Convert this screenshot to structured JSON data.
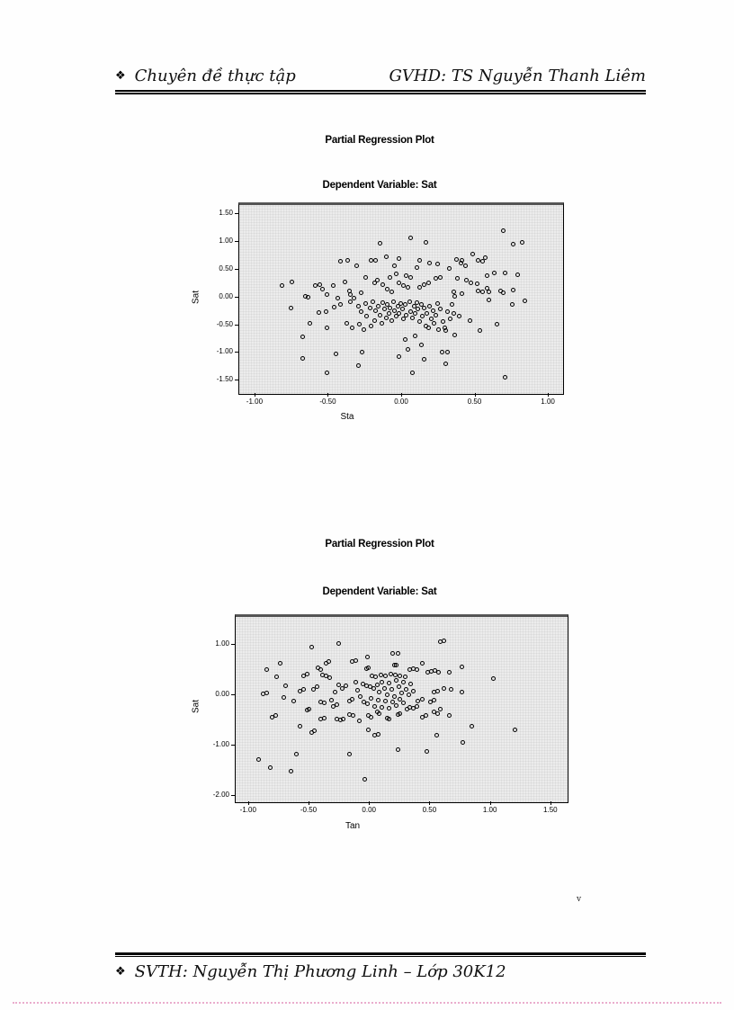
{
  "page": {
    "header": {
      "bullet": "❖",
      "left": "Chuyên đề thực tập",
      "right": "GVHD: TS Nguyễn Thanh Liêm"
    },
    "footer": {
      "bullet": "❖",
      "text": "SVTH: Nguyễn Thị Phương Linh – Lớp 30K12"
    },
    "stray_mark": "v"
  },
  "chart_data": [
    {
      "type": "scatter",
      "title": "Partial Regression Plot",
      "subtitle": "Dependent Variable: Sat",
      "xlabel": "Sta",
      "ylabel": "Sat",
      "xlim": [
        -1.11,
        1.11
      ],
      "ylim": [
        -1.74,
        1.7
      ],
      "grid": false,
      "legend": "none",
      "plot_bg": "#ececec",
      "marker_outline": "#000000",
      "xticks": {
        "values": [
          -1.0,
          -0.5,
          0.0,
          0.5,
          1.0
        ],
        "labels": [
          "-1.00",
          "-0.50",
          "0.00",
          "0.50",
          "1.00"
        ]
      },
      "yticks": {
        "values": [
          1.5,
          1.0,
          0.5,
          0.0,
          -0.5,
          -1.0,
          -1.5
        ],
        "labels": [
          "1.50",
          "1.00",
          "0.50",
          "0.00",
          "-0.50",
          "-1.00",
          "-1.50"
        ]
      },
      "points": [
        [
          -0.82,
          0.24
        ],
        [
          -0.75,
          0.31
        ],
        [
          -0.76,
          -0.15
        ],
        [
          -0.66,
          0.06
        ],
        [
          -0.64,
          0.03
        ],
        [
          -0.68,
          -0.67
        ],
        [
          -0.63,
          -0.44
        ],
        [
          -0.68,
          -1.07
        ],
        [
          -0.59,
          0.24
        ],
        [
          -0.56,
          0.26
        ],
        [
          -0.54,
          0.18
        ],
        [
          -0.51,
          0.08
        ],
        [
          -0.57,
          -0.24
        ],
        [
          -0.52,
          -0.23
        ],
        [
          -0.51,
          -0.52
        ],
        [
          -0.51,
          -1.33
        ],
        [
          -0.47,
          0.24
        ],
        [
          -0.45,
          -0.98
        ],
        [
          -0.44,
          0.02
        ],
        [
          -0.46,
          -0.14
        ],
        [
          -0.42,
          -0.1
        ],
        [
          -0.42,
          0.69
        ],
        [
          -0.39,
          0.32
        ],
        [
          -0.37,
          0.71
        ],
        [
          -0.36,
          0.15
        ],
        [
          -0.38,
          -0.44
        ],
        [
          -0.34,
          -0.52
        ],
        [
          -0.35,
          0.08
        ],
        [
          -0.35,
          -0.05
        ],
        [
          -0.33,
          0.02
        ],
        [
          -0.31,
          0.61
        ],
        [
          -0.3,
          -0.12
        ],
        [
          -0.3,
          -1.2
        ],
        [
          -0.29,
          -0.45
        ],
        [
          -0.28,
          0.11
        ],
        [
          -0.28,
          -0.22
        ],
        [
          -0.27,
          -0.95
        ],
        [
          -0.26,
          -0.55
        ],
        [
          -0.25,
          0.4
        ],
        [
          -0.25,
          -0.08
        ],
        [
          -0.24,
          -0.3
        ],
        [
          -0.22,
          -0.16
        ],
        [
          -0.21,
          0.7
        ],
        [
          -0.21,
          -0.48
        ],
        [
          -0.2,
          -0.05
        ],
        [
          -0.19,
          0.3
        ],
        [
          -0.19,
          -0.38
        ],
        [
          -0.18,
          0.71
        ],
        [
          -0.18,
          -0.2
        ],
        [
          -0.17,
          0.35
        ],
        [
          -0.16,
          -0.12
        ],
        [
          -0.15,
          1.01
        ],
        [
          -0.15,
          -0.28
        ],
        [
          -0.14,
          -0.44
        ],
        [
          -0.13,
          0.26
        ],
        [
          -0.13,
          -0.06
        ],
        [
          -0.12,
          -0.18
        ],
        [
          -0.11,
          0.77
        ],
        [
          -0.11,
          -0.33
        ],
        [
          -0.1,
          0.18
        ],
        [
          -0.1,
          -0.1
        ],
        [
          -0.09,
          -0.25
        ],
        [
          -0.08,
          0.39
        ],
        [
          -0.08,
          -0.15
        ],
        [
          -0.07,
          0.13
        ],
        [
          -0.07,
          -0.38
        ],
        [
          -0.06,
          -0.05
        ],
        [
          -0.05,
          0.61
        ],
        [
          -0.05,
          -0.2
        ],
        [
          -0.04,
          0.46
        ],
        [
          -0.04,
          -0.3
        ],
        [
          -0.03,
          -0.12
        ],
        [
          -0.02,
          0.74
        ],
        [
          -0.02,
          0.3
        ],
        [
          -0.02,
          -0.25
        ],
        [
          -0.02,
          -1.03
        ],
        [
          -0.01,
          -0.08
        ],
        [
          0.0,
          -0.18
        ],
        [
          0.01,
          0.24
        ],
        [
          0.01,
          -0.35
        ],
        [
          0.02,
          -0.1
        ],
        [
          0.02,
          -0.72
        ],
        [
          0.03,
          0.42
        ],
        [
          0.03,
          -0.28
        ],
        [
          0.04,
          0.21
        ],
        [
          0.04,
          -0.9
        ],
        [
          0.05,
          -0.05
        ],
        [
          0.06,
          1.11
        ],
        [
          0.06,
          0.39
        ],
        [
          0.06,
          -0.22
        ],
        [
          0.07,
          -1.33
        ],
        [
          0.07,
          -0.33
        ],
        [
          0.08,
          -0.12
        ],
        [
          0.09,
          -0.66
        ],
        [
          0.09,
          -0.26
        ],
        [
          0.1,
          0.58
        ],
        [
          0.1,
          -0.06
        ],
        [
          0.11,
          -0.18
        ],
        [
          0.12,
          0.71
        ],
        [
          0.12,
          0.21
        ],
        [
          0.12,
          -0.4
        ],
        [
          0.13,
          -0.82
        ],
        [
          0.13,
          -0.1
        ],
        [
          0.14,
          -0.3
        ],
        [
          0.15,
          0.27
        ],
        [
          0.15,
          -1.08
        ],
        [
          0.15,
          -0.16
        ],
        [
          0.16,
          1.03
        ],
        [
          0.16,
          -0.48
        ],
        [
          0.17,
          -0.25
        ],
        [
          0.18,
          0.3
        ],
        [
          0.18,
          -0.52
        ],
        [
          0.19,
          0.66
        ],
        [
          0.19,
          -0.12
        ],
        [
          0.2,
          -0.35
        ],
        [
          0.21,
          -0.2
        ],
        [
          0.22,
          -0.44
        ],
        [
          0.23,
          0.37
        ],
        [
          0.23,
          -0.28
        ],
        [
          0.24,
          0.64
        ],
        [
          0.24,
          -0.08
        ],
        [
          0.25,
          -0.55
        ],
        [
          0.26,
          0.4
        ],
        [
          0.26,
          -0.18
        ],
        [
          0.27,
          -0.96
        ],
        [
          0.28,
          -0.4
        ],
        [
          0.29,
          -0.52
        ],
        [
          0.3,
          -0.57
        ],
        [
          0.3,
          -1.16
        ],
        [
          0.31,
          -0.96
        ],
        [
          0.31,
          -0.22
        ],
        [
          0.32,
          0.56
        ],
        [
          0.33,
          -0.35
        ],
        [
          0.34,
          -0.1
        ],
        [
          0.35,
          0.13
        ],
        [
          0.35,
          -0.25
        ],
        [
          0.36,
          0.05
        ],
        [
          0.36,
          -0.64
        ],
        [
          0.37,
          0.72
        ],
        [
          0.38,
          0.37
        ],
        [
          0.39,
          -0.31
        ],
        [
          0.4,
          0.66
        ],
        [
          0.41,
          0.7
        ],
        [
          0.41,
          0.1
        ],
        [
          0.43,
          0.61
        ],
        [
          0.44,
          0.35
        ],
        [
          0.46,
          -0.39
        ],
        [
          0.47,
          0.3
        ],
        [
          0.48,
          0.81
        ],
        [
          0.51,
          0.28
        ],
        [
          0.52,
          0.71
        ],
        [
          0.52,
          0.15
        ],
        [
          0.53,
          -0.57
        ],
        [
          0.55,
          0.69
        ],
        [
          0.55,
          0.14
        ],
        [
          0.57,
          0.75
        ],
        [
          0.58,
          0.42
        ],
        [
          0.58,
          0.2
        ],
        [
          0.59,
          0.13
        ],
        [
          0.59,
          -0.01
        ],
        [
          0.63,
          0.47
        ],
        [
          0.65,
          -0.45
        ],
        [
          0.67,
          0.15
        ],
        [
          0.69,
          1.24
        ],
        [
          0.69,
          0.12
        ],
        [
          0.7,
          0.47
        ],
        [
          0.7,
          -1.41
        ],
        [
          0.75,
          -0.1
        ],
        [
          0.76,
          1.0
        ],
        [
          0.76,
          0.16
        ],
        [
          0.79,
          0.45
        ],
        [
          0.82,
          1.02
        ],
        [
          0.84,
          -0.02
        ]
      ]
    },
    {
      "type": "scatter",
      "title": "Partial Regression Plot",
      "subtitle": "Dependent Variable: Sat",
      "xlabel": "Tan",
      "ylabel": "Sat",
      "xlim": [
        -1.11,
        1.65
      ],
      "ylim": [
        -2.12,
        1.59
      ],
      "grid": false,
      "legend": "none",
      "plot_bg": "#ececec",
      "marker_outline": "#000000",
      "xticks": {
        "values": [
          -1.0,
          -0.5,
          0.0,
          0.5,
          1.0,
          1.5
        ],
        "labels": [
          "-1.00",
          "-0.50",
          "0.00",
          "0.50",
          "1.00",
          "1.50"
        ]
      },
      "yticks": {
        "values": [
          1.0,
          0.0,
          -1.0,
          -2.0
        ],
        "labels": [
          "1.00",
          "0.00",
          "-1.00",
          "-2.00"
        ]
      },
      "points": [
        [
          -0.92,
          -1.24
        ],
        [
          -0.88,
          0.06
        ],
        [
          -0.85,
          0.54
        ],
        [
          -0.85,
          0.09
        ],
        [
          -0.82,
          -1.39
        ],
        [
          -0.81,
          -0.39
        ],
        [
          -0.78,
          -0.36
        ],
        [
          -0.77,
          0.4
        ],
        [
          -0.74,
          0.67
        ],
        [
          -0.71,
          -0.01
        ],
        [
          -0.7,
          0.23
        ],
        [
          -0.65,
          -1.47
        ],
        [
          -0.63,
          -0.08
        ],
        [
          -0.61,
          -1.13
        ],
        [
          -0.58,
          0.12
        ],
        [
          -0.58,
          -0.58
        ],
        [
          -0.55,
          0.42
        ],
        [
          -0.55,
          0.15
        ],
        [
          -0.52,
          0.45
        ],
        [
          -0.52,
          -0.25
        ],
        [
          -0.5,
          -0.23
        ],
        [
          -0.48,
          0.99
        ],
        [
          -0.48,
          -0.7
        ],
        [
          -0.47,
          0.15
        ],
        [
          -0.46,
          -0.67
        ],
        [
          -0.44,
          0.2
        ],
        [
          -0.43,
          0.58
        ],
        [
          -0.41,
          0.55
        ],
        [
          -0.41,
          -0.09
        ],
        [
          -0.41,
          -0.43
        ],
        [
          -0.39,
          0.44
        ],
        [
          -0.38,
          -0.11
        ],
        [
          -0.38,
          -0.41
        ],
        [
          -0.36,
          0.68
        ],
        [
          -0.36,
          0.42
        ],
        [
          -0.34,
          0.7
        ],
        [
          -0.33,
          0.39
        ],
        [
          -0.32,
          -0.06
        ],
        [
          -0.3,
          -0.18
        ],
        [
          -0.29,
          0.1
        ],
        [
          -0.27,
          -0.15
        ],
        [
          -0.27,
          -0.44
        ],
        [
          -0.26,
          1.06
        ],
        [
          -0.26,
          0.25
        ],
        [
          -0.24,
          -0.46
        ],
        [
          -0.23,
          0.18
        ],
        [
          -0.22,
          -0.43
        ],
        [
          -0.2,
          0.22
        ],
        [
          -0.17,
          -0.08
        ],
        [
          -0.17,
          -0.35
        ],
        [
          -0.17,
          -1.13
        ],
        [
          -0.15,
          0.71
        ],
        [
          -0.15,
          -0.05
        ],
        [
          -0.14,
          -0.37
        ],
        [
          -0.12,
          0.73
        ],
        [
          -0.12,
          0.3
        ],
        [
          -0.1,
          0.14
        ],
        [
          -0.09,
          -0.47
        ],
        [
          -0.08,
          0.02
        ],
        [
          -0.06,
          0.26
        ],
        [
          -0.05,
          -0.1
        ],
        [
          -0.04,
          -1.63
        ],
        [
          -0.03,
          0.57
        ],
        [
          -0.03,
          0.23
        ],
        [
          -0.02,
          0.8
        ],
        [
          -0.02,
          -0.14
        ],
        [
          -0.01,
          0.58
        ],
        [
          -0.01,
          -0.36
        ],
        [
          -0.01,
          -0.65
        ],
        [
          0.0,
          0.2
        ],
        [
          0.01,
          -0.02
        ],
        [
          0.01,
          -0.39
        ],
        [
          0.02,
          0.42
        ],
        [
          0.03,
          0.17
        ],
        [
          0.04,
          -0.18
        ],
        [
          0.04,
          -0.76
        ],
        [
          0.05,
          0.4
        ],
        [
          0.06,
          0.24
        ],
        [
          0.06,
          -0.3
        ],
        [
          0.07,
          -0.06
        ],
        [
          0.07,
          -0.73
        ],
        [
          0.08,
          0.1
        ],
        [
          0.08,
          -0.33
        ],
        [
          0.09,
          0.44
        ],
        [
          0.1,
          0.3
        ],
        [
          0.1,
          -0.2
        ],
        [
          0.12,
          0.18
        ],
        [
          0.13,
          0.42
        ],
        [
          0.13,
          -0.08
        ],
        [
          0.14,
          0.05
        ],
        [
          0.14,
          -0.41
        ],
        [
          0.16,
          0.28
        ],
        [
          0.16,
          -0.22
        ],
        [
          0.16,
          -0.43
        ],
        [
          0.17,
          0.46
        ],
        [
          0.18,
          0.15
        ],
        [
          0.19,
          0.86
        ],
        [
          0.19,
          -0.1
        ],
        [
          0.2,
          0.64
        ],
        [
          0.2,
          0.02
        ],
        [
          0.21,
          0.44
        ],
        [
          0.22,
          0.63
        ],
        [
          0.22,
          0.34
        ],
        [
          0.22,
          -0.16
        ],
        [
          0.23,
          0.87
        ],
        [
          0.23,
          -0.35
        ],
        [
          0.23,
          -1.04
        ],
        [
          0.24,
          0.2
        ],
        [
          0.25,
          0.42
        ],
        [
          0.25,
          -0.04
        ],
        [
          0.25,
          -0.32
        ],
        [
          0.26,
          0.08
        ],
        [
          0.28,
          0.3
        ],
        [
          0.28,
          -0.12
        ],
        [
          0.29,
          0.4
        ],
        [
          0.3,
          0.16
        ],
        [
          0.31,
          -0.24
        ],
        [
          0.32,
          0.04
        ],
        [
          0.33,
          0.55
        ],
        [
          0.33,
          -0.2
        ],
        [
          0.34,
          0.26
        ],
        [
          0.36,
          0.57
        ],
        [
          0.36,
          0.12
        ],
        [
          0.36,
          -0.22
        ],
        [
          0.39,
          0.55
        ],
        [
          0.39,
          -0.18
        ],
        [
          0.4,
          -0.08
        ],
        [
          0.43,
          0.68
        ],
        [
          0.43,
          -0.05
        ],
        [
          0.43,
          -0.39
        ],
        [
          0.46,
          -0.36
        ],
        [
          0.47,
          -1.08
        ],
        [
          0.48,
          0.5
        ],
        [
          0.5,
          -0.09
        ],
        [
          0.51,
          0.51
        ],
        [
          0.53,
          0.1
        ],
        [
          0.53,
          -0.06
        ],
        [
          0.53,
          -0.3
        ],
        [
          0.54,
          0.52
        ],
        [
          0.55,
          -0.76
        ],
        [
          0.56,
          0.12
        ],
        [
          0.56,
          -0.33
        ],
        [
          0.57,
          0.5
        ],
        [
          0.58,
          1.1
        ],
        [
          0.58,
          -0.24
        ],
        [
          0.61,
          1.11
        ],
        [
          0.61,
          0.18
        ],
        [
          0.66,
          0.49
        ],
        [
          0.66,
          -0.36
        ],
        [
          0.67,
          0.16
        ],
        [
          0.76,
          0.6
        ],
        [
          0.76,
          0.1
        ],
        [
          0.77,
          -0.9
        ],
        [
          0.84,
          -0.58
        ],
        [
          1.02,
          0.36
        ],
        [
          1.2,
          -0.64
        ]
      ]
    }
  ]
}
